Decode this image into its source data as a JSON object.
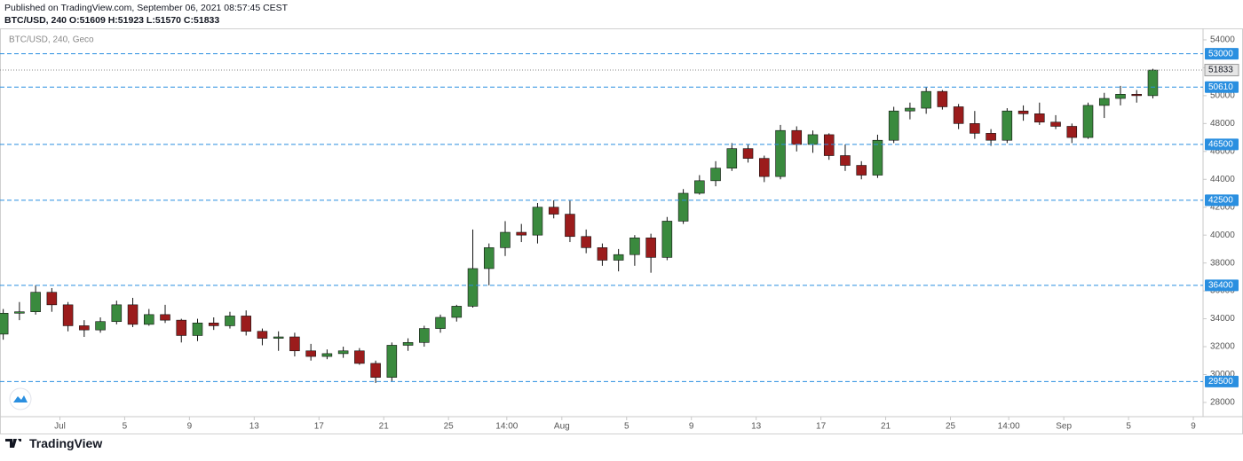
{
  "header": {
    "published": "Published on TradingView.com, September 06, 2021 08:57:45 CEST",
    "ohlc": "BTC/USD, 240 O:51609 H:51923 L:51570 C:51833"
  },
  "footer": {
    "brand": "TradingView"
  },
  "chart_data": {
    "type": "candlestick",
    "legend": "BTC/USD, 240, Geco",
    "open": [
      32900,
      34400,
      34500,
      35900,
      35000,
      33500,
      33200,
      33800,
      35000,
      33600,
      34300,
      33900,
      32800,
      33700,
      33500,
      34200,
      33100,
      32600,
      32700,
      31700,
      31300,
      31500,
      31700,
      30800,
      29800,
      32100,
      32300,
      33300,
      34100,
      34900,
      37600,
      39100,
      40200,
      40000,
      42000,
      41500,
      39900,
      39100,
      38200,
      38600,
      39800,
      38400,
      41000,
      43000,
      43900,
      44800,
      46200,
      45500,
      44200,
      47500,
      46500,
      47200,
      45700,
      45000,
      44300,
      46800,
      48900,
      49100,
      50300,
      49200,
      48000,
      47300,
      46800,
      48900,
      48700,
      48100,
      47800,
      47000,
      49300,
      49800,
      50100,
      50000
    ],
    "high": [
      34700,
      35200,
      36400,
      36200,
      35200,
      33900,
      34100,
      35300,
      35500,
      34700,
      35000,
      34000,
      34000,
      34100,
      34500,
      34600,
      33300,
      33100,
      33000,
      32200,
      31800,
      32000,
      31900,
      31000,
      32300,
      32600,
      33500,
      34300,
      35000,
      40400,
      39400,
      41000,
      40800,
      42300,
      42500,
      42500,
      40400,
      39400,
      39000,
      40000,
      40100,
      41300,
      43300,
      44300,
      45300,
      46600,
      46500,
      45700,
      47900,
      47800,
      47500,
      47300,
      46500,
      45300,
      47200,
      49200,
      49500,
      50600,
      50400,
      49400,
      48900,
      47600,
      49100,
      49300,
      49500,
      48600,
      48000,
      49500,
      50200,
      50700,
      50400,
      51923
    ],
    "low": [
      32500,
      33900,
      34300,
      34500,
      33100,
      32700,
      33000,
      33600,
      33400,
      33500,
      33700,
      32300,
      32400,
      33200,
      33300,
      32800,
      32100,
      31700,
      31300,
      31000,
      31100,
      31200,
      30700,
      29400,
      29500,
      31700,
      32000,
      33000,
      33800,
      34800,
      36400,
      38500,
      39500,
      39400,
      41200,
      39500,
      38700,
      37800,
      37400,
      37800,
      37300,
      38200,
      40800,
      42900,
      43500,
      44600,
      45200,
      43800,
      44000,
      46000,
      45900,
      45400,
      44600,
      44000,
      44100,
      46600,
      48300,
      48700,
      49000,
      47600,
      46900,
      46400,
      46600,
      48200,
      47900,
      47600,
      46600,
      46900,
      48400,
      49300,
      49500,
      49800
    ],
    "close": [
      34400,
      34500,
      35900,
      35000,
      33500,
      33200,
      33800,
      35000,
      33600,
      34300,
      33900,
      32800,
      33700,
      33500,
      34200,
      33100,
      32600,
      32700,
      31700,
      31300,
      31500,
      31700,
      30800,
      29800,
      32100,
      32300,
      33300,
      34100,
      34900,
      37600,
      39100,
      40200,
      40000,
      42000,
      41500,
      39900,
      39100,
      38200,
      38600,
      39800,
      38400,
      41000,
      43000,
      43900,
      44800,
      46200,
      45500,
      44200,
      47500,
      46500,
      47200,
      45700,
      45000,
      44300,
      46800,
      48900,
      49100,
      50300,
      49200,
      48000,
      47300,
      46800,
      48900,
      48700,
      48100,
      47800,
      47000,
      49300,
      49800,
      50100,
      50000,
      51833
    ],
    "up_color": "#3a8a3e",
    "down_color": "#9b1c1c",
    "wick_color": "#111111",
    "levels": [
      53000,
      50610,
      46500,
      42500,
      36400,
      29500
    ],
    "level_color": "#2a8fe0",
    "last_price": 51833,
    "ylim": [
      26980,
      54760
    ],
    "yticks": [
      28000,
      30000,
      32000,
      34000,
      36000,
      38000,
      40000,
      42000,
      44000,
      46000,
      48000,
      50000,
      52000,
      54000
    ],
    "xlim": [
      0.3,
      74.6
    ],
    "xticks": [
      {
        "value": 4,
        "label": "Jul"
      },
      {
        "value": 8,
        "label": "5"
      },
      {
        "value": 12,
        "label": "9"
      },
      {
        "value": 16,
        "label": "13"
      },
      {
        "value": 20,
        "label": "17"
      },
      {
        "value": 24,
        "label": "21"
      },
      {
        "value": 28,
        "label": "25"
      },
      {
        "value": 31.6,
        "label": "14:00"
      },
      {
        "value": 35,
        "label": "Aug"
      },
      {
        "value": 39,
        "label": "5"
      },
      {
        "value": 43,
        "label": "9"
      },
      {
        "value": 47,
        "label": "13"
      },
      {
        "value": 51,
        "label": "17"
      },
      {
        "value": 55,
        "label": "21"
      },
      {
        "value": 59,
        "label": "25"
      },
      {
        "value": 62.6,
        "label": "14:00"
      },
      {
        "value": 66,
        "label": "Sep"
      },
      {
        "value": 70,
        "label": "5"
      },
      {
        "value": 74,
        "label": "9"
      }
    ]
  }
}
